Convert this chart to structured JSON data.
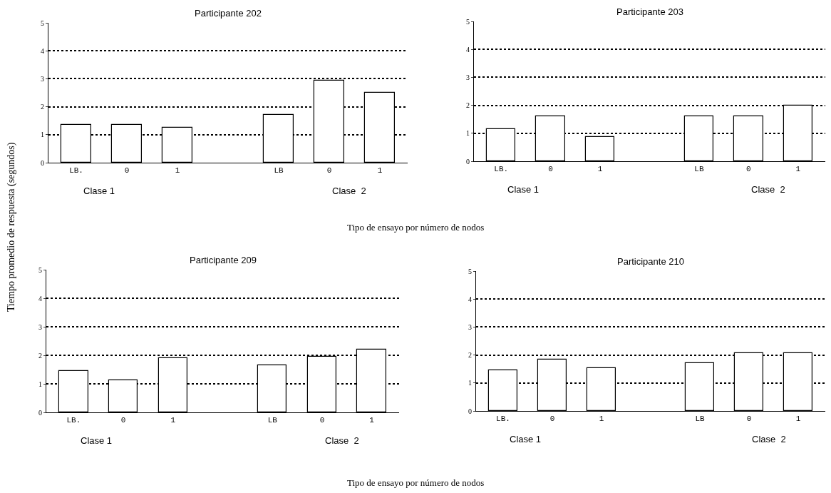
{
  "chart_data": [
    {
      "type": "bar",
      "title": "Participante 202",
      "ylabel": "Tiempo promedio de respuesta (segundos)",
      "xlabel": "Tipo de ensayo por número de nodos",
      "categories": [
        "LB.",
        "0",
        "1",
        null,
        "LB",
        "0",
        "1"
      ],
      "values": [
        1.34,
        1.34,
        1.24,
        null,
        1.72,
        2.94,
        2.49
      ],
      "color": "#ffffff",
      "ylim": [
        0,
        5
      ],
      "yticks": [
        0,
        1,
        2,
        3,
        4,
        5
      ],
      "grid": "y",
      "annotations": [
        "Clase 1",
        "Clase  2"
      ]
    },
    {
      "type": "bar",
      "title": "Participante 203",
      "categories": [
        "LB.",
        "0",
        "1",
        null,
        "LB",
        "0",
        "1"
      ],
      "values": [
        1.15,
        1.61,
        0.86,
        null,
        1.61,
        1.61,
        1.98
      ],
      "color": "#ffffff",
      "ylim": [
        0,
        5
      ],
      "yticks": [
        0,
        1,
        2,
        3,
        4,
        5
      ],
      "grid": "y",
      "annotations": [
        "Clase 1",
        "Clase  2"
      ]
    },
    {
      "type": "bar",
      "title": "Participante 209",
      "xlabel": "Tipo de ensayo por número de nodos",
      "categories": [
        "LB.",
        "0",
        "1",
        null,
        "LB",
        "0",
        "1"
      ],
      "values": [
        1.46,
        1.13,
        1.91,
        null,
        1.65,
        1.94,
        2.2
      ],
      "color": "#ffffff",
      "ylim": [
        0,
        5
      ],
      "yticks": [
        0,
        1,
        2,
        3,
        4,
        5
      ],
      "grid": "y",
      "annotations": [
        "Clase 1",
        "Clase  2"
      ]
    },
    {
      "type": "bar",
      "title": "Participante 210",
      "categories": [
        "LB.",
        "0",
        "1",
        null,
        "LB",
        "0",
        "1"
      ],
      "values": [
        1.45,
        1.83,
        1.53,
        null,
        1.72,
        2.07,
        2.07
      ],
      "color": "#ffffff",
      "ylim": [
        0,
        5
      ],
      "yticks": [
        0,
        1,
        2,
        3,
        4,
        5
      ],
      "grid": "y",
      "annotations": [
        "Clase 1",
        "Clase  2"
      ]
    }
  ]
}
